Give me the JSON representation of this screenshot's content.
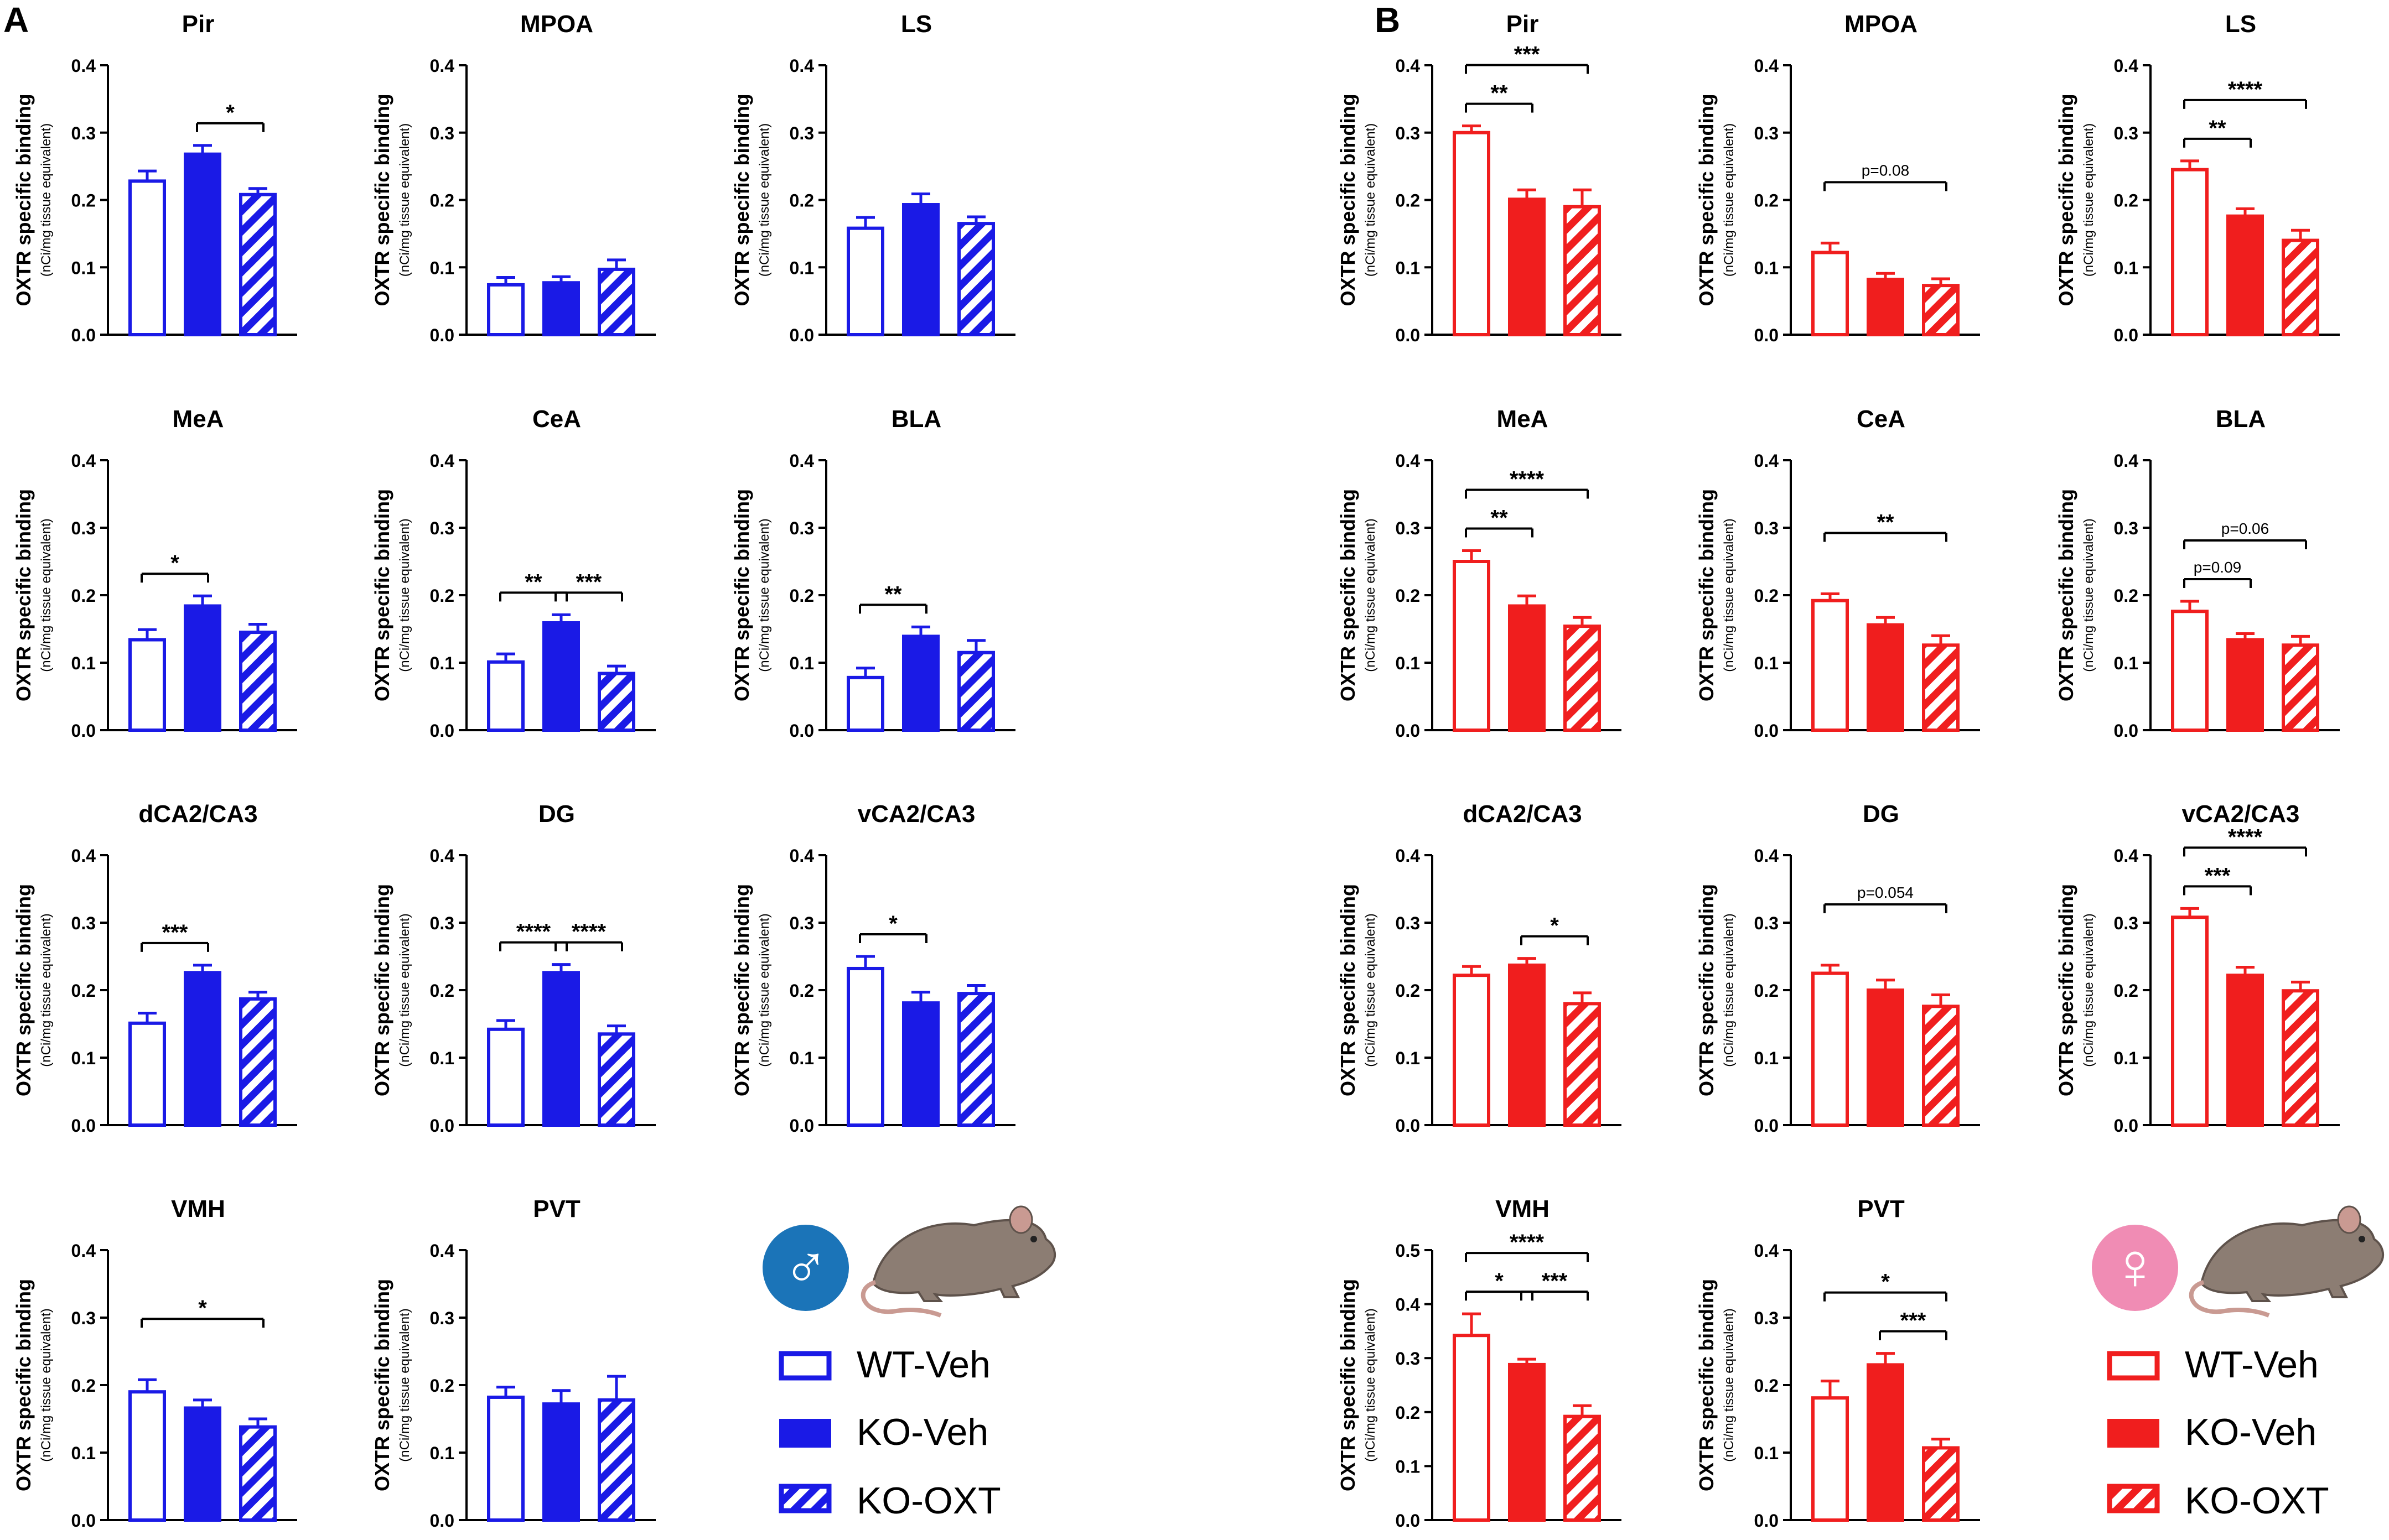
{
  "figure": {
    "panel_labels": [
      "A",
      "B"
    ],
    "y_axis_label": "OXTR specific binding",
    "y_axis_sublabel": "(nCi/mg tissue equivalent)",
    "legends": [
      {
        "panel": "A",
        "symbol": "♂",
        "items": [
          "WT-Veh",
          "KO-Veh",
          "KO-OXT"
        ],
        "color": "#1a1ae6"
      },
      {
        "panel": "B",
        "symbol": "♀",
        "items": [
          "WT-Veh",
          "KO-Veh",
          "KO-OXT"
        ],
        "color": "#f01e1e"
      }
    ]
  },
  "colors": {
    "male": "#1a1ae6",
    "female": "#f01e1e",
    "male_badge": "#1b74b8",
    "female_badge": "#f08cb4",
    "mouse": "#8c7d73"
  },
  "chart_data": [
    {
      "id": "A-Pir",
      "panel": "A",
      "type": "bar",
      "title": "Pir",
      "categories": [
        "WT-Veh",
        "KO-Veh",
        "KO-OXT"
      ],
      "values": [
        0.228,
        0.268,
        0.208
      ],
      "errors": [
        0.015,
        0.013,
        0.009
      ],
      "ylim": [
        0,
        0.4
      ],
      "ticks": [
        "0.0",
        "0.1",
        "0.2",
        "0.3",
        "0.4"
      ],
      "comparisons": [
        {
          "from": 1,
          "to": 2,
          "label": "*"
        }
      ]
    },
    {
      "id": "A-MPOA",
      "panel": "A",
      "type": "bar",
      "title": "MPOA",
      "categories": [
        "WT-Veh",
        "KO-Veh",
        "KO-OXT"
      ],
      "values": [
        0.074,
        0.077,
        0.097
      ],
      "errors": [
        0.011,
        0.009,
        0.014
      ],
      "ylim": [
        0,
        0.4
      ],
      "ticks": [
        "0.0",
        "0.1",
        "0.2",
        "0.3",
        "0.4"
      ],
      "comparisons": []
    },
    {
      "id": "A-LS",
      "panel": "A",
      "type": "bar",
      "title": "LS",
      "categories": [
        "WT-Veh",
        "KO-Veh",
        "KO-OXT"
      ],
      "values": [
        0.158,
        0.193,
        0.165
      ],
      "errors": [
        0.016,
        0.016,
        0.01
      ],
      "ylim": [
        0,
        0.4
      ],
      "ticks": [
        "0.0",
        "0.1",
        "0.2",
        "0.3",
        "0.4"
      ],
      "comparisons": []
    },
    {
      "id": "A-MeA",
      "panel": "A",
      "type": "bar",
      "title": "MeA",
      "categories": [
        "WT-Veh",
        "KO-Veh",
        "KO-OXT"
      ],
      "values": [
        0.134,
        0.184,
        0.145
      ],
      "errors": [
        0.015,
        0.015,
        0.012
      ],
      "ylim": [
        0,
        0.4
      ],
      "ticks": [
        "0.0",
        "0.1",
        "0.2",
        "0.3",
        "0.4"
      ],
      "comparisons": [
        {
          "from": 0,
          "to": 1,
          "label": "*"
        }
      ]
    },
    {
      "id": "A-CeA",
      "panel": "A",
      "type": "bar",
      "title": "CeA",
      "categories": [
        "WT-Veh",
        "KO-Veh",
        "KO-OXT"
      ],
      "values": [
        0.101,
        0.159,
        0.084
      ],
      "errors": [
        0.012,
        0.012,
        0.011
      ],
      "ylim": [
        0,
        0.4
      ],
      "ticks": [
        "0.0",
        "0.1",
        "0.2",
        "0.3",
        "0.4"
      ],
      "comparisons": [
        {
          "from": 0,
          "to": 1,
          "label": "**"
        },
        {
          "from": 1,
          "to": 2,
          "label": "***"
        }
      ]
    },
    {
      "id": "A-BLA",
      "panel": "A",
      "type": "bar",
      "title": "BLA",
      "categories": [
        "WT-Veh",
        "KO-Veh",
        "KO-OXT"
      ],
      "values": [
        0.078,
        0.139,
        0.115
      ],
      "errors": [
        0.014,
        0.014,
        0.018
      ],
      "ylim": [
        0,
        0.4
      ],
      "ticks": [
        "0.0",
        "0.1",
        "0.2",
        "0.3",
        "0.4"
      ],
      "comparisons": [
        {
          "from": 0,
          "to": 1,
          "label": "**"
        }
      ]
    },
    {
      "id": "A-dCA2CA3",
      "panel": "A",
      "type": "bar",
      "title": "dCA2/CA3",
      "categories": [
        "WT-Veh",
        "KO-Veh",
        "KO-OXT"
      ],
      "values": [
        0.151,
        0.226,
        0.187
      ],
      "errors": [
        0.015,
        0.011,
        0.01
      ],
      "ylim": [
        0,
        0.4
      ],
      "ticks": [
        "0.0",
        "0.1",
        "0.2",
        "0.3",
        "0.4"
      ],
      "comparisons": [
        {
          "from": 0,
          "to": 1,
          "label": "***"
        }
      ]
    },
    {
      "id": "A-DG",
      "panel": "A",
      "type": "bar",
      "title": "DG",
      "categories": [
        "WT-Veh",
        "KO-Veh",
        "KO-OXT"
      ],
      "values": [
        0.142,
        0.226,
        0.135
      ],
      "errors": [
        0.013,
        0.012,
        0.012
      ],
      "ylim": [
        0,
        0.4
      ],
      "ticks": [
        "0.0",
        "0.1",
        "0.2",
        "0.3",
        "0.4"
      ],
      "comparisons": [
        {
          "from": 0,
          "to": 1,
          "label": "****"
        },
        {
          "from": 1,
          "to": 2,
          "label": "****"
        }
      ]
    },
    {
      "id": "A-vCA2CA3",
      "panel": "A",
      "type": "bar",
      "title": "vCA2/CA3",
      "categories": [
        "WT-Veh",
        "KO-Veh",
        "KO-OXT"
      ],
      "values": [
        0.232,
        0.181,
        0.195
      ],
      "errors": [
        0.018,
        0.016,
        0.012
      ],
      "ylim": [
        0,
        0.4
      ],
      "ticks": [
        "0.0",
        "0.1",
        "0.2",
        "0.3",
        "0.4"
      ],
      "comparisons": [
        {
          "from": 0,
          "to": 1,
          "label": "*"
        }
      ]
    },
    {
      "id": "A-VMH",
      "panel": "A",
      "type": "bar",
      "title": "VMH",
      "categories": [
        "WT-Veh",
        "KO-Veh",
        "KO-OXT"
      ],
      "values": [
        0.19,
        0.166,
        0.138
      ],
      "errors": [
        0.018,
        0.012,
        0.012
      ],
      "ylim": [
        0,
        0.4
      ],
      "ticks": [
        "0.0",
        "0.1",
        "0.2",
        "0.3",
        "0.4"
      ],
      "comparisons": [
        {
          "from": 0,
          "to": 2,
          "label": "*"
        }
      ]
    },
    {
      "id": "A-PVT",
      "panel": "A",
      "type": "bar",
      "title": "PVT",
      "categories": [
        "WT-Veh",
        "KO-Veh",
        "KO-OXT"
      ],
      "values": [
        0.182,
        0.172,
        0.178
      ],
      "errors": [
        0.015,
        0.02,
        0.035
      ],
      "ylim": [
        0,
        0.4
      ],
      "ticks": [
        "0.0",
        "0.1",
        "0.2",
        "0.3",
        "0.4"
      ],
      "comparisons": []
    },
    {
      "id": "B-Pir",
      "panel": "B",
      "type": "bar",
      "title": "Pir",
      "categories": [
        "WT-Veh",
        "KO-Veh",
        "KO-OXT"
      ],
      "values": [
        0.3,
        0.201,
        0.19
      ],
      "errors": [
        0.01,
        0.014,
        0.025
      ],
      "ylim": [
        0,
        0.4
      ],
      "ticks": [
        "0.0",
        "0.1",
        "0.2",
        "0.3",
        "0.4"
      ],
      "comparisons": [
        {
          "from": 0,
          "to": 1,
          "label": "**"
        },
        {
          "from": 0,
          "to": 2,
          "label": "***"
        }
      ]
    },
    {
      "id": "B-MPOA",
      "panel": "B",
      "type": "bar",
      "title": "MPOA",
      "categories": [
        "WT-Veh",
        "KO-Veh",
        "KO-OXT"
      ],
      "values": [
        0.122,
        0.082,
        0.073
      ],
      "errors": [
        0.014,
        0.009,
        0.01
      ],
      "ylim": [
        0,
        0.4
      ],
      "ticks": [
        "0.0",
        "0.1",
        "0.2",
        "0.3",
        "0.4"
      ],
      "comparisons": [
        {
          "from": 0,
          "to": 2,
          "label": "p=0.08"
        }
      ]
    },
    {
      "id": "B-LS",
      "panel": "B",
      "type": "bar",
      "title": "LS",
      "categories": [
        "WT-Veh",
        "KO-Veh",
        "KO-OXT"
      ],
      "values": [
        0.245,
        0.176,
        0.14
      ],
      "errors": [
        0.013,
        0.011,
        0.015
      ],
      "ylim": [
        0,
        0.4
      ],
      "ticks": [
        "0.0",
        "0.1",
        "0.2",
        "0.3",
        "0.4"
      ],
      "comparisons": [
        {
          "from": 0,
          "to": 1,
          "label": "**"
        },
        {
          "from": 0,
          "to": 2,
          "label": "****"
        }
      ]
    },
    {
      "id": "B-MeA",
      "panel": "B",
      "type": "bar",
      "title": "MeA",
      "categories": [
        "WT-Veh",
        "KO-Veh",
        "KO-OXT"
      ],
      "values": [
        0.25,
        0.184,
        0.154
      ],
      "errors": [
        0.016,
        0.015,
        0.013
      ],
      "ylim": [
        0,
        0.4
      ],
      "ticks": [
        "0.0",
        "0.1",
        "0.2",
        "0.3",
        "0.4"
      ],
      "comparisons": [
        {
          "from": 0,
          "to": 1,
          "label": "**"
        },
        {
          "from": 0,
          "to": 2,
          "label": "****"
        }
      ]
    },
    {
      "id": "B-CeA",
      "panel": "B",
      "type": "bar",
      "title": "CeA",
      "categories": [
        "WT-Veh",
        "KO-Veh",
        "KO-OXT"
      ],
      "values": [
        0.192,
        0.156,
        0.126
      ],
      "errors": [
        0.01,
        0.011,
        0.014
      ],
      "ylim": [
        0,
        0.4
      ],
      "ticks": [
        "0.0",
        "0.1",
        "0.2",
        "0.3",
        "0.4"
      ],
      "comparisons": [
        {
          "from": 0,
          "to": 2,
          "label": "**"
        }
      ]
    },
    {
      "id": "B-BLA",
      "panel": "B",
      "type": "bar",
      "title": "BLA",
      "categories": [
        "WT-Veh",
        "KO-Veh",
        "KO-OXT"
      ],
      "values": [
        0.176,
        0.134,
        0.126
      ],
      "errors": [
        0.015,
        0.009,
        0.013
      ],
      "ylim": [
        0,
        0.4
      ],
      "ticks": [
        "0.0",
        "0.1",
        "0.2",
        "0.3",
        "0.4"
      ],
      "comparisons": [
        {
          "from": 0,
          "to": 1,
          "label": "p=0.09"
        },
        {
          "from": 0,
          "to": 2,
          "label": "p=0.06"
        }
      ]
    },
    {
      "id": "B-dCA2CA3",
      "panel": "B",
      "type": "bar",
      "title": "dCA2/CA3",
      "categories": [
        "WT-Veh",
        "KO-Veh",
        "KO-OXT"
      ],
      "values": [
        0.222,
        0.237,
        0.18
      ],
      "errors": [
        0.013,
        0.01,
        0.016
      ],
      "ylim": [
        0,
        0.4
      ],
      "ticks": [
        "0.0",
        "0.1",
        "0.2",
        "0.3",
        "0.4"
      ],
      "comparisons": [
        {
          "from": 1,
          "to": 2,
          "label": "*"
        }
      ]
    },
    {
      "id": "B-DG",
      "panel": "B",
      "type": "bar",
      "title": "DG",
      "categories": [
        "WT-Veh",
        "KO-Veh",
        "KO-OXT"
      ],
      "values": [
        0.225,
        0.2,
        0.176
      ],
      "errors": [
        0.012,
        0.015,
        0.017
      ],
      "ylim": [
        0,
        0.4
      ],
      "ticks": [
        "0.0",
        "0.1",
        "0.2",
        "0.3",
        "0.4"
      ],
      "comparisons": [
        {
          "from": 0,
          "to": 2,
          "label": "p=0.054"
        }
      ]
    },
    {
      "id": "B-vCA2CA3",
      "panel": "B",
      "type": "bar",
      "title": "vCA2/CA3",
      "categories": [
        "WT-Veh",
        "KO-Veh",
        "KO-OXT"
      ],
      "values": [
        0.308,
        0.222,
        0.199
      ],
      "errors": [
        0.013,
        0.012,
        0.013
      ],
      "ylim": [
        0,
        0.4
      ],
      "ticks": [
        "0.0",
        "0.1",
        "0.2",
        "0.3",
        "0.4"
      ],
      "comparisons": [
        {
          "from": 0,
          "to": 1,
          "label": "***"
        },
        {
          "from": 0,
          "to": 2,
          "label": "****"
        }
      ]
    },
    {
      "id": "B-VMH",
      "panel": "B",
      "type": "bar",
      "title": "VMH",
      "categories": [
        "WT-Veh",
        "KO-Veh",
        "KO-OXT"
      ],
      "values": [
        0.342,
        0.288,
        0.192
      ],
      "errors": [
        0.04,
        0.01,
        0.02
      ],
      "ylim": [
        0,
        0.5
      ],
      "ticks": [
        "0.0",
        "0.1",
        "0.2",
        "0.3",
        "0.4",
        "0.5"
      ],
      "comparisons": [
        {
          "from": 0,
          "to": 1,
          "label": "*"
        },
        {
          "from": 1,
          "to": 2,
          "label": "***"
        },
        {
          "from": 0,
          "to": 2,
          "label": "****"
        }
      ]
    },
    {
      "id": "B-PVT",
      "panel": "B",
      "type": "bar",
      "title": "PVT",
      "categories": [
        "WT-Veh",
        "KO-Veh",
        "KO-OXT"
      ],
      "values": [
        0.181,
        0.23,
        0.107
      ],
      "errors": [
        0.025,
        0.017,
        0.013
      ],
      "ylim": [
        0,
        0.4
      ],
      "ticks": [
        "0.0",
        "0.1",
        "0.2",
        "0.3",
        "0.4"
      ],
      "comparisons": [
        {
          "from": 1,
          "to": 2,
          "label": "***"
        },
        {
          "from": 0,
          "to": 2,
          "label": "*"
        }
      ]
    }
  ]
}
